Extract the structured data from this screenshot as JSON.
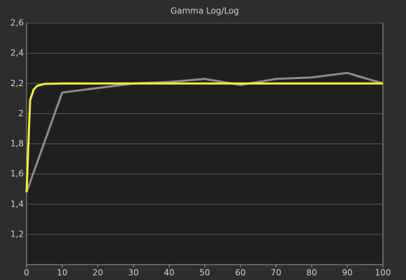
{
  "chart_data": {
    "type": "line",
    "title": "Gamma Log/Log",
    "xlim": [
      0,
      100
    ],
    "xticks": [
      0,
      10,
      20,
      30,
      40,
      50,
      60,
      70,
      80,
      90,
      100
    ],
    "ylim": [
      1,
      2.6
    ],
    "yticks": [
      {
        "value": 1.2,
        "label": "1,2"
      },
      {
        "value": 1.4,
        "label": "1,4"
      },
      {
        "value": 1.6,
        "label": "1,6"
      },
      {
        "value": 1.8,
        "label": "1,8"
      },
      2,
      {
        "value": 2.2,
        "label": "2,2"
      },
      {
        "value": 2.4,
        "label": "2,4"
      },
      {
        "value": 2.6,
        "label": "2,6"
      }
    ],
    "grid": true,
    "series": [
      {
        "color": "#8c8c8c",
        "x": [
          0,
          10,
          20,
          30,
          40,
          50,
          60,
          70,
          80,
          90,
          100
        ],
        "values": [
          1.48,
          2.14,
          2.17,
          2.2,
          2.21,
          2.23,
          2.19,
          2.23,
          2.24,
          2.27,
          2.2
        ]
      },
      {
        "color": "#f2f230",
        "x": [
          0,
          1,
          2,
          3,
          5,
          10,
          100
        ],
        "values": [
          1.48,
          2.09,
          2.16,
          2.185,
          2.197,
          2.2,
          2.2
        ]
      }
    ]
  }
}
